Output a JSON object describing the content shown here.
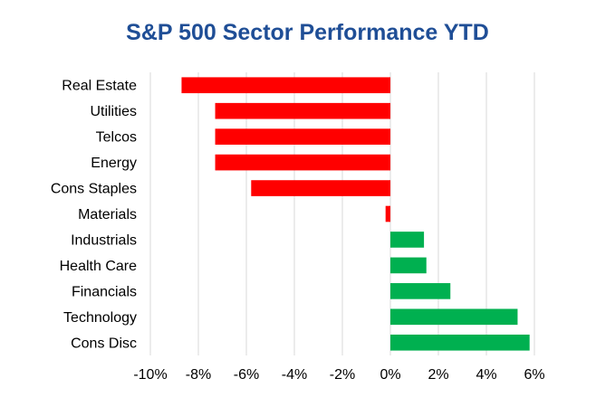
{
  "chart_data": {
    "type": "bar",
    "orientation": "horizontal",
    "title": "S&P 500 Sector Performance YTD",
    "xlabel": "",
    "ylabel": "",
    "categories": [
      "Real Estate",
      "Utilities",
      "Telcos",
      "Energy",
      "Cons Staples",
      "Materials",
      "Industrials",
      "Health Care",
      "Financials",
      "Technology",
      "Cons Disc"
    ],
    "values": [
      -8.7,
      -7.3,
      -7.3,
      -7.3,
      -5.8,
      -0.2,
      1.4,
      1.5,
      2.5,
      5.3,
      5.8
    ],
    "xlim": [
      -10,
      6
    ],
    "xticks": [
      -10,
      -8,
      -6,
      -4,
      -2,
      0,
      2,
      4,
      6
    ],
    "tick_format": "percent",
    "grid": "vertical",
    "legend": "none",
    "colors": {
      "negative": "#ff0000",
      "positive": "#00b050",
      "grid": "#d9d9d9",
      "title": "#1f4e96"
    }
  }
}
